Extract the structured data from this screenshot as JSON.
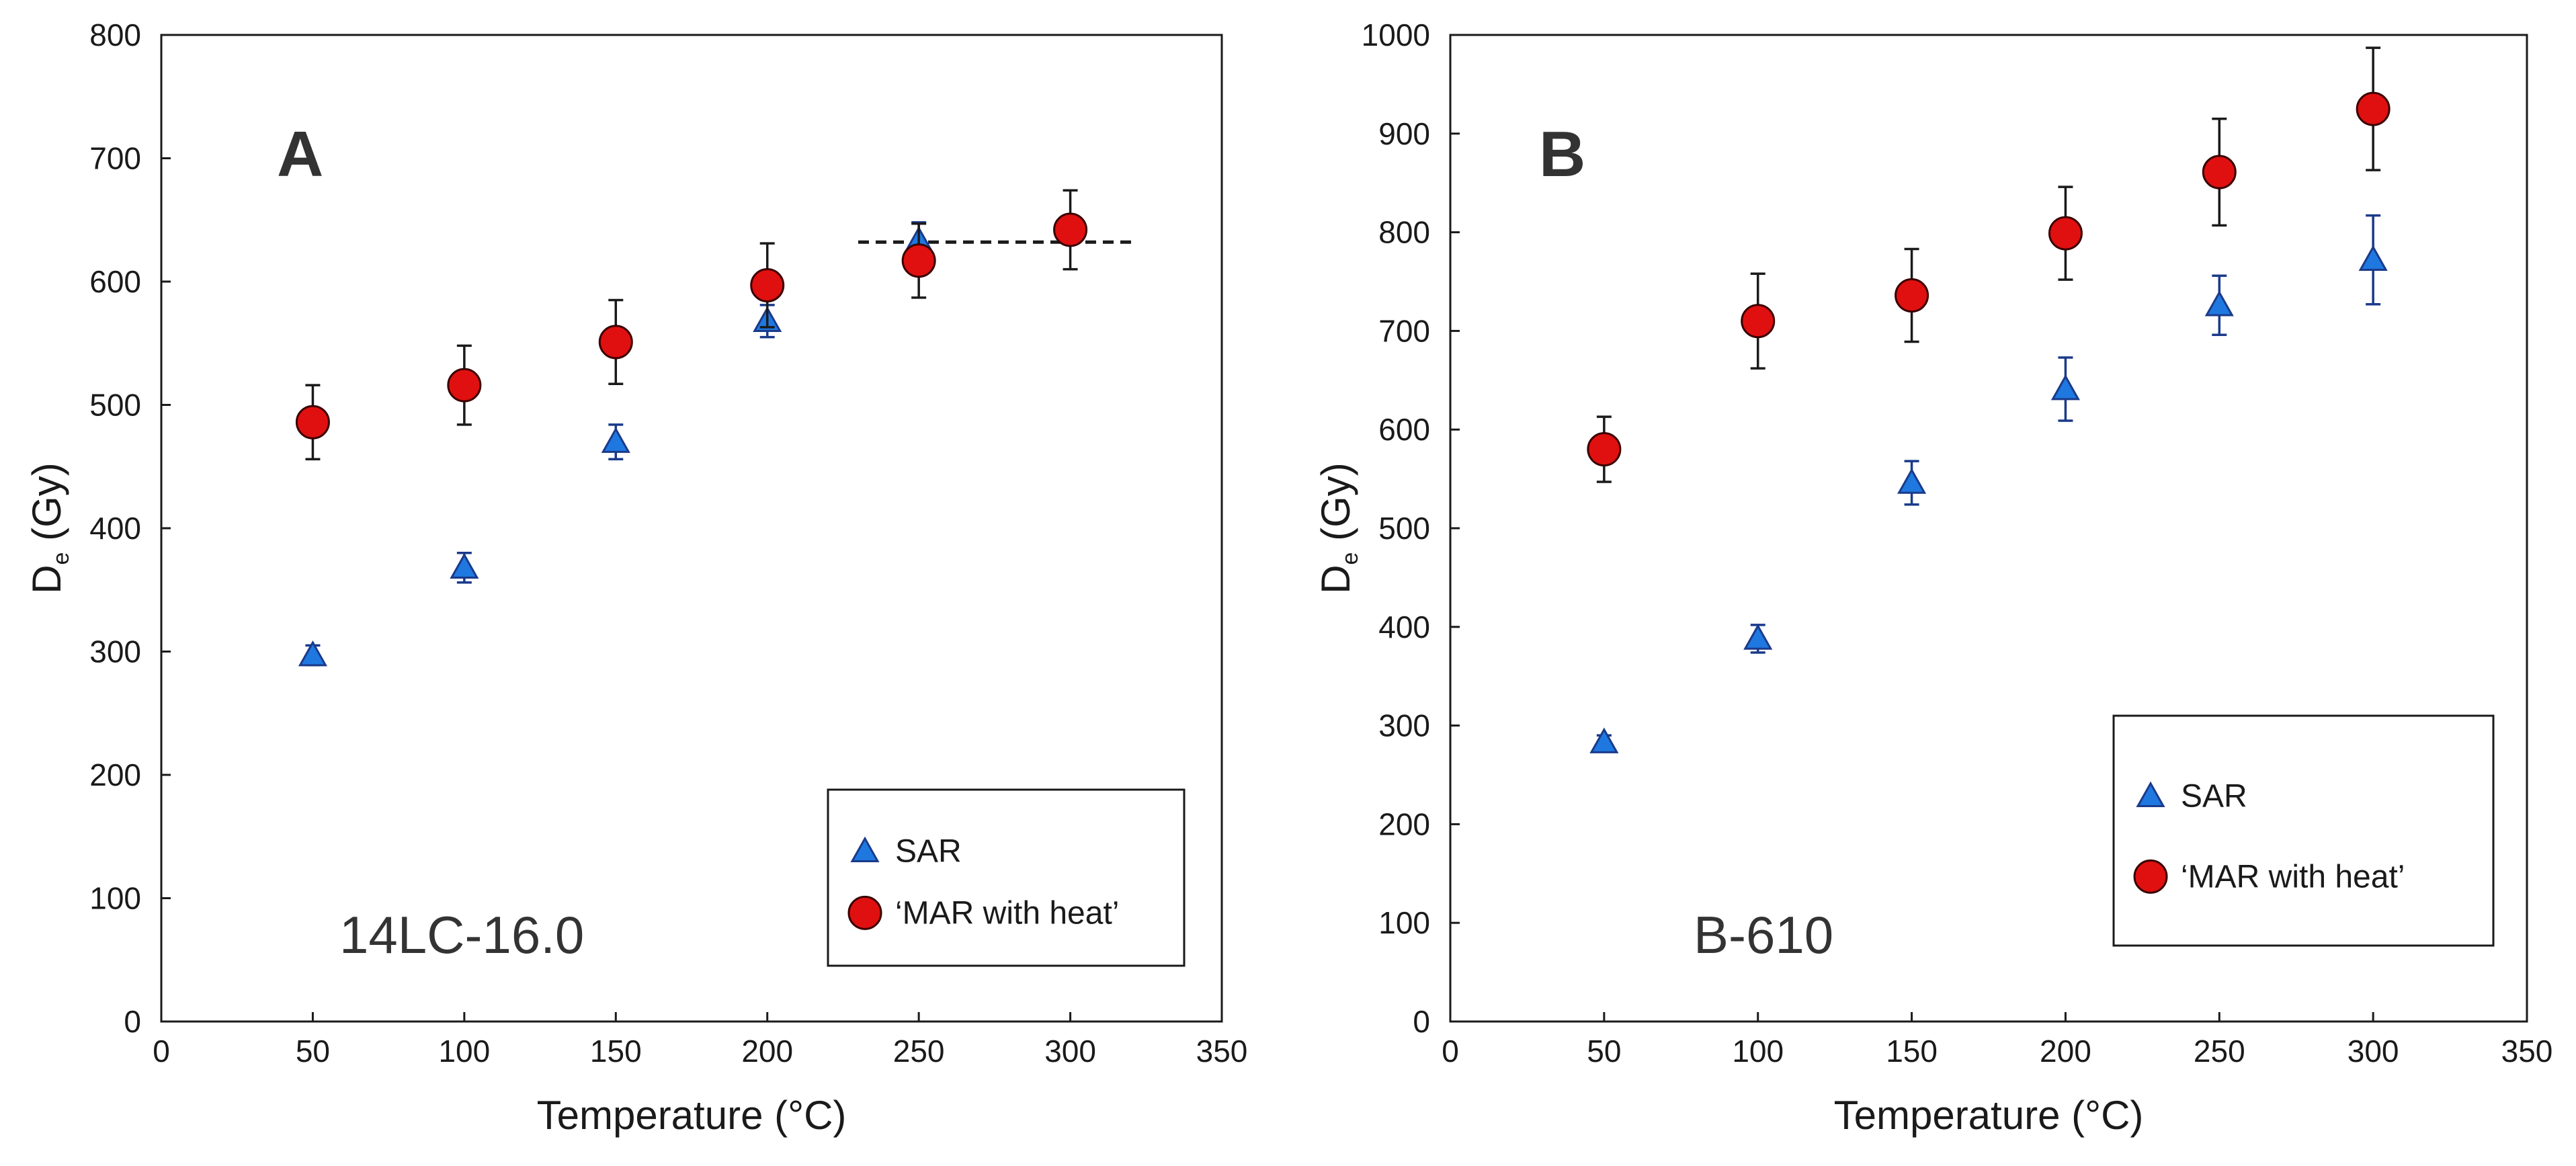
{
  "chart_data": [
    {
      "type": "scatter",
      "panel_letter": "A",
      "sample_label": "14LC-16.0",
      "xlabel": "Temperature (°C)",
      "ylabel": "D",
      "ylabel_sub": "e",
      "ylabel_unit": " (Gy)",
      "xlim": [
        0,
        350
      ],
      "ylim": [
        0,
        800
      ],
      "xticks": [
        0,
        50,
        100,
        150,
        200,
        250,
        300,
        350
      ],
      "yticks": [
        0,
        100,
        200,
        300,
        400,
        500,
        600,
        700,
        800
      ],
      "series": [
        {
          "name": "SAR",
          "marker": "triangle",
          "color": "#1e78e0",
          "x": [
            50,
            100,
            150,
            200,
            250
          ],
          "y": [
            297,
            368,
            470,
            568,
            633
          ],
          "err": [
            8,
            12,
            14,
            13,
            15
          ]
        },
        {
          "name": "‘MAR with heat’",
          "marker": "circle",
          "color": "#e01010",
          "x": [
            50,
            100,
            150,
            200,
            250,
            300
          ],
          "y": [
            486,
            516,
            551,
            597,
            617,
            642
          ],
          "err": [
            30,
            32,
            34,
            34,
            30,
            32
          ]
        }
      ],
      "reference_line": {
        "y": 632,
        "x_from": 230,
        "x_to": 322,
        "style": "dashed"
      }
    },
    {
      "type": "scatter",
      "panel_letter": "B",
      "sample_label": "B-610",
      "xlabel": "Temperature (°C)",
      "ylabel": "D",
      "ylabel_sub": "e",
      "ylabel_unit": " (Gy)",
      "xlim": [
        0,
        350
      ],
      "ylim": [
        0,
        1000
      ],
      "xticks": [
        0,
        50,
        100,
        150,
        200,
        250,
        300,
        350
      ],
      "yticks": [
        0,
        100,
        200,
        300,
        400,
        500,
        600,
        700,
        800,
        900,
        1000
      ],
      "series": [
        {
          "name": "SAR",
          "marker": "triangle",
          "color": "#1e78e0",
          "x": [
            50,
            100,
            150,
            200,
            250,
            300
          ],
          "y": [
            283,
            388,
            546,
            641,
            726,
            772
          ],
          "err": [
            7,
            14,
            22,
            32,
            30,
            45
          ]
        },
        {
          "name": "‘MAR with heat’",
          "marker": "circle",
          "color": "#e01010",
          "x": [
            50,
            100,
            150,
            200,
            250,
            300
          ],
          "y": [
            580,
            710,
            736,
            799,
            861,
            925
          ],
          "err": [
            33,
            48,
            47,
            47,
            54,
            62
          ]
        }
      ]
    }
  ]
}
